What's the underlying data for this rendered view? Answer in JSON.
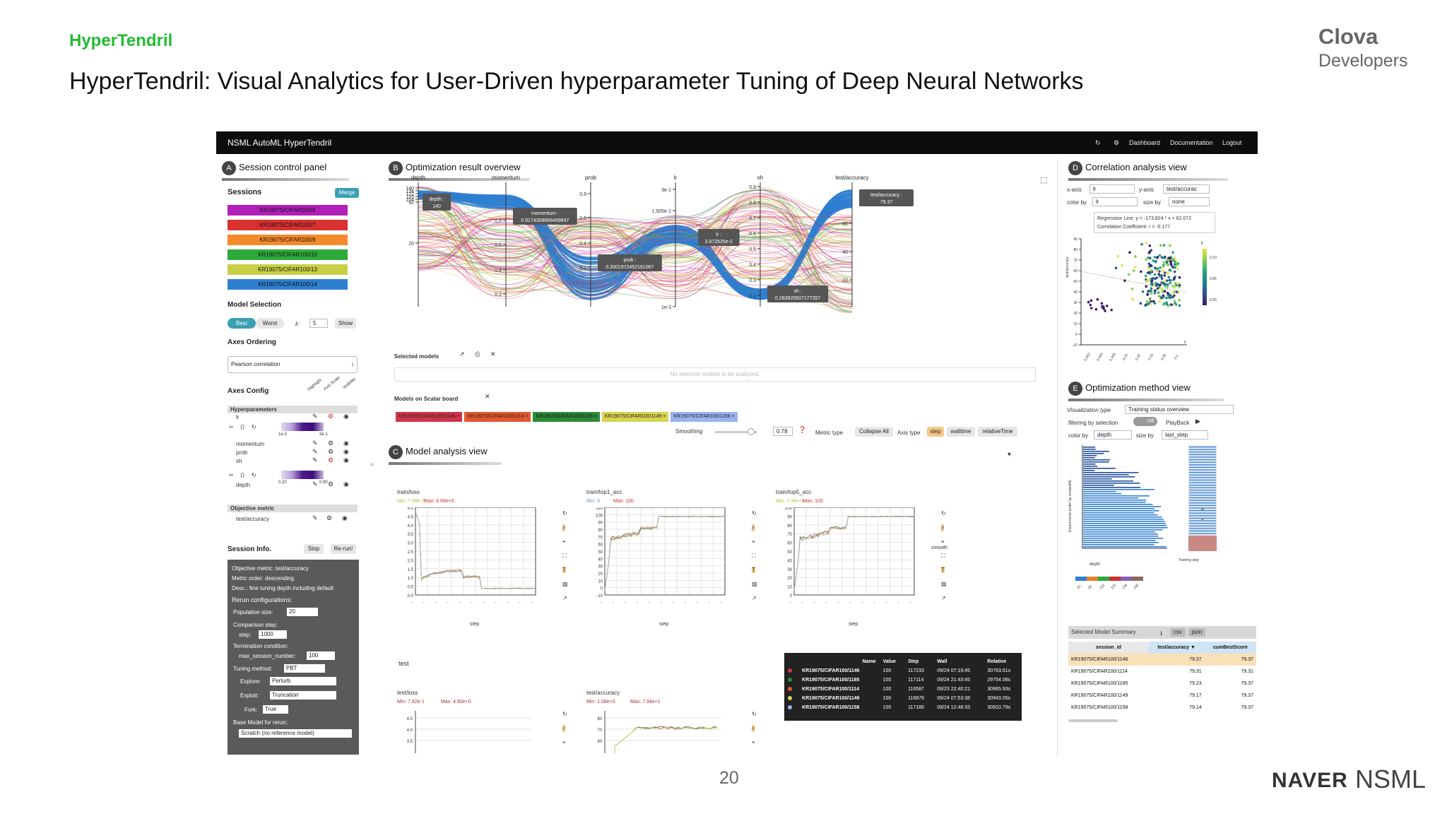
{
  "slide": {
    "kicker": "HyperTendril",
    "title": "HyperTendril: Visual Analytics for User-Driven hyperparameter Tuning of Deep Neural Networks",
    "logo_line1": "Clova",
    "logo_line2": "Developers",
    "page_number": "20",
    "footer_naver": "NAVER",
    "footer_nsml": "NSML"
  },
  "app": {
    "title": "NSML AutoML HyperTendril",
    "nav": [
      "Dashboard",
      "Documentation",
      "Logout"
    ],
    "nav_icons": [
      "refresh-icon",
      "gear-icon"
    ]
  },
  "panelA": {
    "badge": "A",
    "title": "Session control panel",
    "sessions_label": "Sessions",
    "merge_label": "Merge",
    "sessions": [
      {
        "name": "KR19075/CIFAR100/6",
        "color": "#b01fb8"
      },
      {
        "name": "KR19075/CIFAR100/7",
        "color": "#d93030"
      },
      {
        "name": "KR19075/CIFAR100/8",
        "color": "#f48a2a"
      },
      {
        "name": "KR19075/CIFAR100/10",
        "color": "#2eaa3a"
      },
      {
        "name": "KR19075/CIFAR100/13",
        "color": "#c9cf45"
      },
      {
        "name": "KR19075/CIFAR100/14",
        "color": "#2f7fd0"
      }
    ],
    "model_selection_label": "Model Selection",
    "best_label": "Best",
    "worst_label": "Worst",
    "k_label": "k:",
    "k_value": "5",
    "show_label": "Show",
    "axes_ordering_label": "Axes Ordering",
    "axes_ordering_value": "Pearson correlation",
    "axes_config_label": "Axes Config",
    "axes_config_cols": [
      "Highlight",
      "Axis Scale",
      "Visibility"
    ],
    "hyperparameters_label": "Hyperparameters",
    "hp_items": [
      "lr",
      "momentum",
      "prob",
      "sh",
      "depth"
    ],
    "lr_range": [
      "1e-3",
      "3e-1"
    ],
    "depth_range": [
      "0.20",
      "0.90"
    ],
    "objective_metric_label": "Objective metric",
    "objective_metric_item": "test/accuracy",
    "session_info_label": "Session Info.",
    "stop_label": "Stop",
    "rerun_label": "Re-run!",
    "info": {
      "objective_metric": "Objective metric:   test/accuracy",
      "metric_order": "Metric order:   descending",
      "desc": "Desc.:   fine tuning depth including default",
      "rerun_configurations": "Rerun configurations:",
      "population_size_label": "Population size:",
      "population_size": "20",
      "comparison_step_label": "Comparison step:",
      "step_label": "step:",
      "step_value": "1000",
      "termination_label": "Termination condition:",
      "max_session_label": "max_session_number:",
      "max_session_value": "100",
      "tuning_method_label": "Tuning method:",
      "tuning_method_value": "PBT",
      "explore_label": "Explore:",
      "explore_value": "Perturb",
      "exploit_label": "Exploit:",
      "exploit_value": "Truncation",
      "fork_label": "Fork:",
      "fork_value": "True",
      "base_model_label": "Base Model for rerun:",
      "base_model_value": "Scratch (no reference model)"
    }
  },
  "panelB": {
    "badge": "B",
    "title": "Optimization result overview",
    "axes": [
      "depth",
      "momentum",
      "prob",
      "lr",
      "sh",
      "test/accuracy"
    ],
    "depth_ticks": [
      "180",
      "134",
      "122",
      "110",
      "104",
      "92",
      "20"
    ],
    "momentum_ticks": [
      "0.8",
      "0.6",
      "0.4",
      "0.2"
    ],
    "prob_ticks": [
      "0.8",
      "0.6",
      "0.4",
      "0.2"
    ],
    "lr_ticks": [
      "3e-1",
      "1.505e-1",
      "1e-3"
    ],
    "sh_ticks": [
      "0.9",
      "0.8",
      "0.7",
      "0.6",
      "0.5",
      "0.4",
      "0.3",
      "0.2"
    ],
    "acc_ticks": [
      "60",
      "40",
      "20"
    ],
    "tooltips": {
      "depth": "depth :\n140",
      "momentum": "momentum :\n0.9174308866499847",
      "prob": "prob :\n0.3301972452161067",
      "lr": "lr :\n3.873525e-2",
      "sh": "sh :\n0.283820507177357",
      "acc": "test/accuracy :\n79.37"
    },
    "selected_models_label": "Selected models",
    "no_selection_text": "No selected models to be analyzed.",
    "models_on_scalar_label": "Models on Scalar board",
    "scalar_models": [
      {
        "name": "KR19075/CIFAR100/1146",
        "color": "#d0334a"
      },
      {
        "name": "KR19075/CIFAR100/1114",
        "color": "#e2572f"
      },
      {
        "name": "KR19075/CIFAR100/1185",
        "color": "#2c8a3a"
      },
      {
        "name": "KR19075/CIFAR100/1149",
        "color": "#d8d350"
      },
      {
        "name": "KR19075/CIFAR100/1158",
        "color": "#9ab3f0"
      }
    ],
    "smoothing_label": "Smoothing",
    "smoothing_value": "0.78",
    "metric_type_label": "Metric type",
    "collapse_all_label": "Collapse All",
    "axis_type_label": "Axis type",
    "axis_type_options": [
      "step",
      "walltime",
      "relativeTime"
    ]
  },
  "panelC": {
    "badge": "C",
    "title": "Model analysis view",
    "charts": [
      {
        "title": "train/loss",
        "min": "Min: 7.99e-3",
        "max": "Max: 4.66e+0",
        "min_color": "#b5c342",
        "max_color": "#d03030",
        "yticks": [
          "5.0",
          "4.5",
          "4.0",
          "3.5",
          "3.0",
          "2.5",
          "2.0",
          "1.5",
          "1.0",
          "0.5",
          "0.0"
        ],
        "xlabel": "step"
      },
      {
        "title": "train/top1_acc",
        "min": "Min: 0",
        "max": "Max: 100",
        "min_color": "#6d8ed8",
        "max_color": "#d03030",
        "yticks": [
          "110",
          "100",
          "90",
          "80",
          "70",
          "60",
          "50",
          "40",
          "30",
          "20",
          "10",
          "0",
          "-10"
        ],
        "xlabel": "step"
      },
      {
        "title": "train/top5_acc",
        "min": "Min: 2.34e+0",
        "max": "Max: 100",
        "min_color": "#b5c342",
        "max_color": "#d03030",
        "yticks": [
          "100",
          "90",
          "80",
          "70",
          "60",
          "50",
          "40",
          "30",
          "20",
          "10",
          "0"
        ],
        "xlabel": "step"
      }
    ],
    "test_label": "test",
    "test_charts": [
      {
        "title": "test/loss",
        "min": "Min: 7.82e-1",
        "max": "Max: 4.60e+0",
        "yticks": [
          "4.5",
          "4.0",
          "3.5"
        ]
      },
      {
        "title": "test/accuracy",
        "min": "Min: 1.08e+0",
        "max": "Max: 7.94e+1",
        "yticks": [
          "80",
          "70",
          "60"
        ]
      }
    ],
    "smooth_label": "smooth",
    "popup": {
      "headers": [
        "Name",
        "Value",
        "Step",
        "Wall",
        "Relative"
      ],
      "rows": [
        {
          "name": "KR19075/CIFAR100/1146",
          "value": "100",
          "step": "117233",
          "wall": "09/24 07:19:45",
          "rel": "30763.51s",
          "color": "#d0334a"
        },
        {
          "name": "KR19075/CIFAR100/1185",
          "value": "100",
          "step": "117114",
          "wall": "09/24 21:43:45",
          "rel": "29754.08s",
          "color": "#2c8a3a"
        },
        {
          "name": "KR19075/CIFAR100/1114",
          "value": "100",
          "step": "116587",
          "wall": "09/23 22:40:21",
          "rel": "30965.93s",
          "color": "#e2572f"
        },
        {
          "name": "KR19075/CIFAR100/1149",
          "value": "100",
          "step": "116879",
          "wall": "09/24 07:53:38",
          "rel": "30943.05s",
          "color": "#d8d350"
        },
        {
          "name": "KR19075/CIFAR100/1158",
          "value": "100",
          "step": "117185",
          "wall": "09/24 12:48:33",
          "rel": "30910.79s",
          "color": "#9ab3f0"
        }
      ]
    }
  },
  "panelD": {
    "badge": "D",
    "title": "Correlation analysis view",
    "xaxis_label": "x-axis",
    "xaxis_value": "lr",
    "yaxis_label": "y-axis",
    "yaxis_value": "test/accurac",
    "colorby_label": "color by",
    "colorby_value": "lr",
    "sizeby_label": "size by",
    "sizeby_value": "none",
    "regression": "Regression Line: y = -173.824 * x + 62.072",
    "correlation": "Correlation Coefficient: r = -0.177",
    "ylabel": "test/accuracy",
    "yticks": [
      "90",
      "80",
      "70",
      "60",
      "50",
      "40",
      "30",
      "20",
      "10",
      "0",
      "-10"
    ],
    "xticks": [
      "0.002",
      "0.003",
      "0.005",
      "0.01",
      "0.02",
      "0.03",
      "0.05",
      "0.1"
    ],
    "xaxis_name": "lr",
    "colorbar_title": "lr",
    "colorbar_ticks": [
      "0.10",
      "0.05",
      "0.00"
    ]
  },
  "panelE": {
    "badge": "E",
    "title": "Optimization method view",
    "viz_type_label": "Visualization type",
    "viz_type_value": "Training status overview",
    "filtering_label": "filtering by selection",
    "toggle_label": "Off",
    "playback_label": "PlayBack",
    "colorby_label": "color by",
    "colorby_value": "depth",
    "sizeby_label": "size by",
    "sizeby_value": "last_step",
    "ylabel": "Experiments (order by createdAt)",
    "xlabel": "Training step",
    "depth_label": "depth",
    "depth_ticks": [
      "20",
      "92",
      "110",
      "122",
      "134",
      "140"
    ],
    "summary_label": "Selected Model Summary",
    "csv_label": "csv",
    "json_label": "json",
    "table_headers": [
      "session_id",
      "test/accuracy ▼",
      "cumBestScore"
    ],
    "table_rows": [
      [
        "KR19075/CIFAR100/1146",
        "79.37",
        "79.37"
      ],
      [
        "KR19075/CIFAR100/1114",
        "79.31",
        "79.31"
      ],
      [
        "KR19075/CIFAR100/1185",
        "79.23",
        "79.37"
      ],
      [
        "KR19075/CIFAR100/1149",
        "79.17",
        "79.37"
      ],
      [
        "KR19075/CIFAR100/1158",
        "79.14",
        "79.37"
      ]
    ]
  }
}
